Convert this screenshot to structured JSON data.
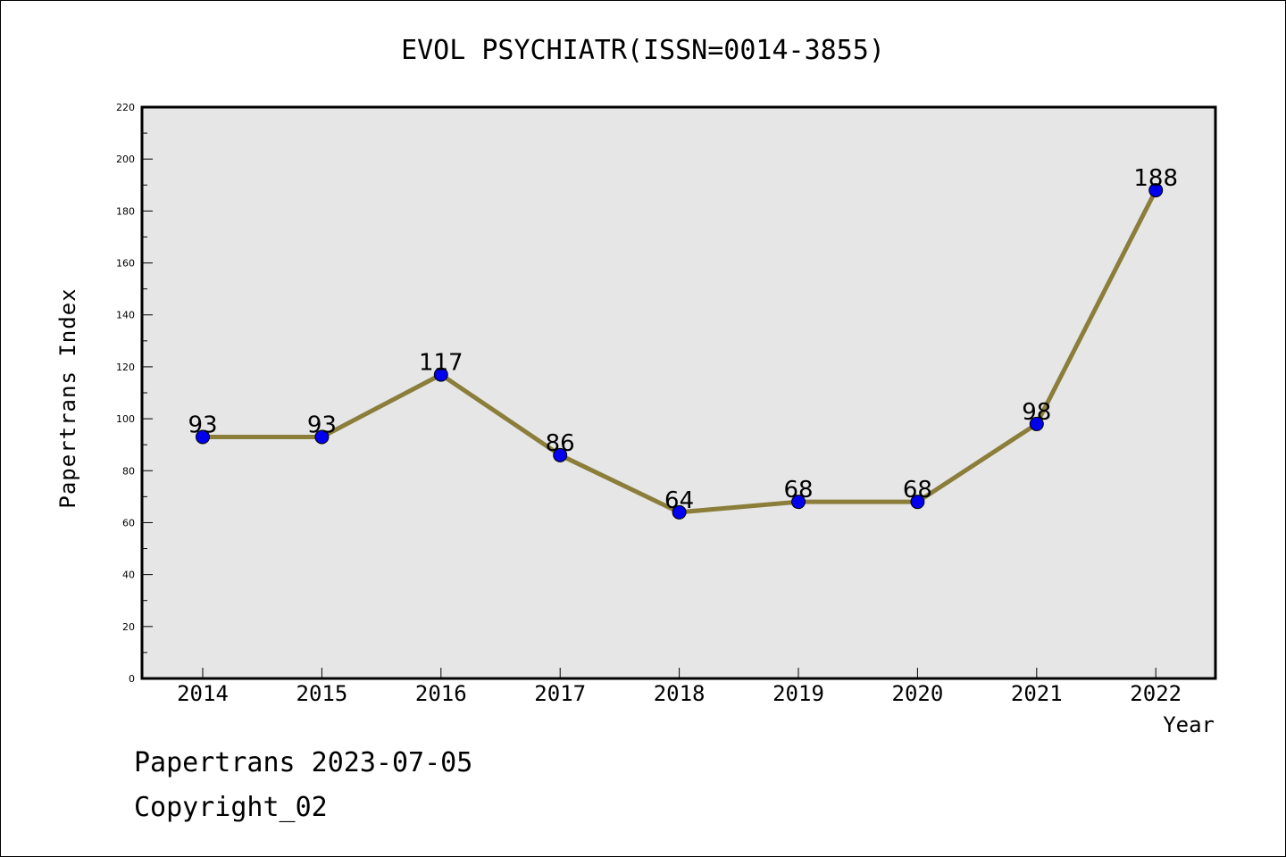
{
  "chart_data": {
    "type": "line",
    "title": "EVOL PSYCHIATR(ISSN=0014-3855)",
    "xlabel": "Year",
    "ylabel": "Papertrans Index",
    "categories": [
      "2014",
      "2015",
      "2016",
      "2017",
      "2018",
      "2019",
      "2020",
      "2021",
      "2022"
    ],
    "series": [
      {
        "values": [
          93,
          93,
          117,
          86,
          64,
          68,
          68,
          98,
          188
        ]
      }
    ],
    "ylim": [
      0,
      220
    ],
    "yticks": [
      0,
      20,
      40,
      60,
      80,
      100,
      120,
      140,
      160,
      180,
      200,
      220
    ],
    "grid": false,
    "line_color": "#8b7d3a",
    "marker_color": "#0000ee",
    "plot_background": "#e6e6e6"
  },
  "footer": {
    "line1": "Papertrans 2023-07-05",
    "line2": "Copyright_02"
  }
}
